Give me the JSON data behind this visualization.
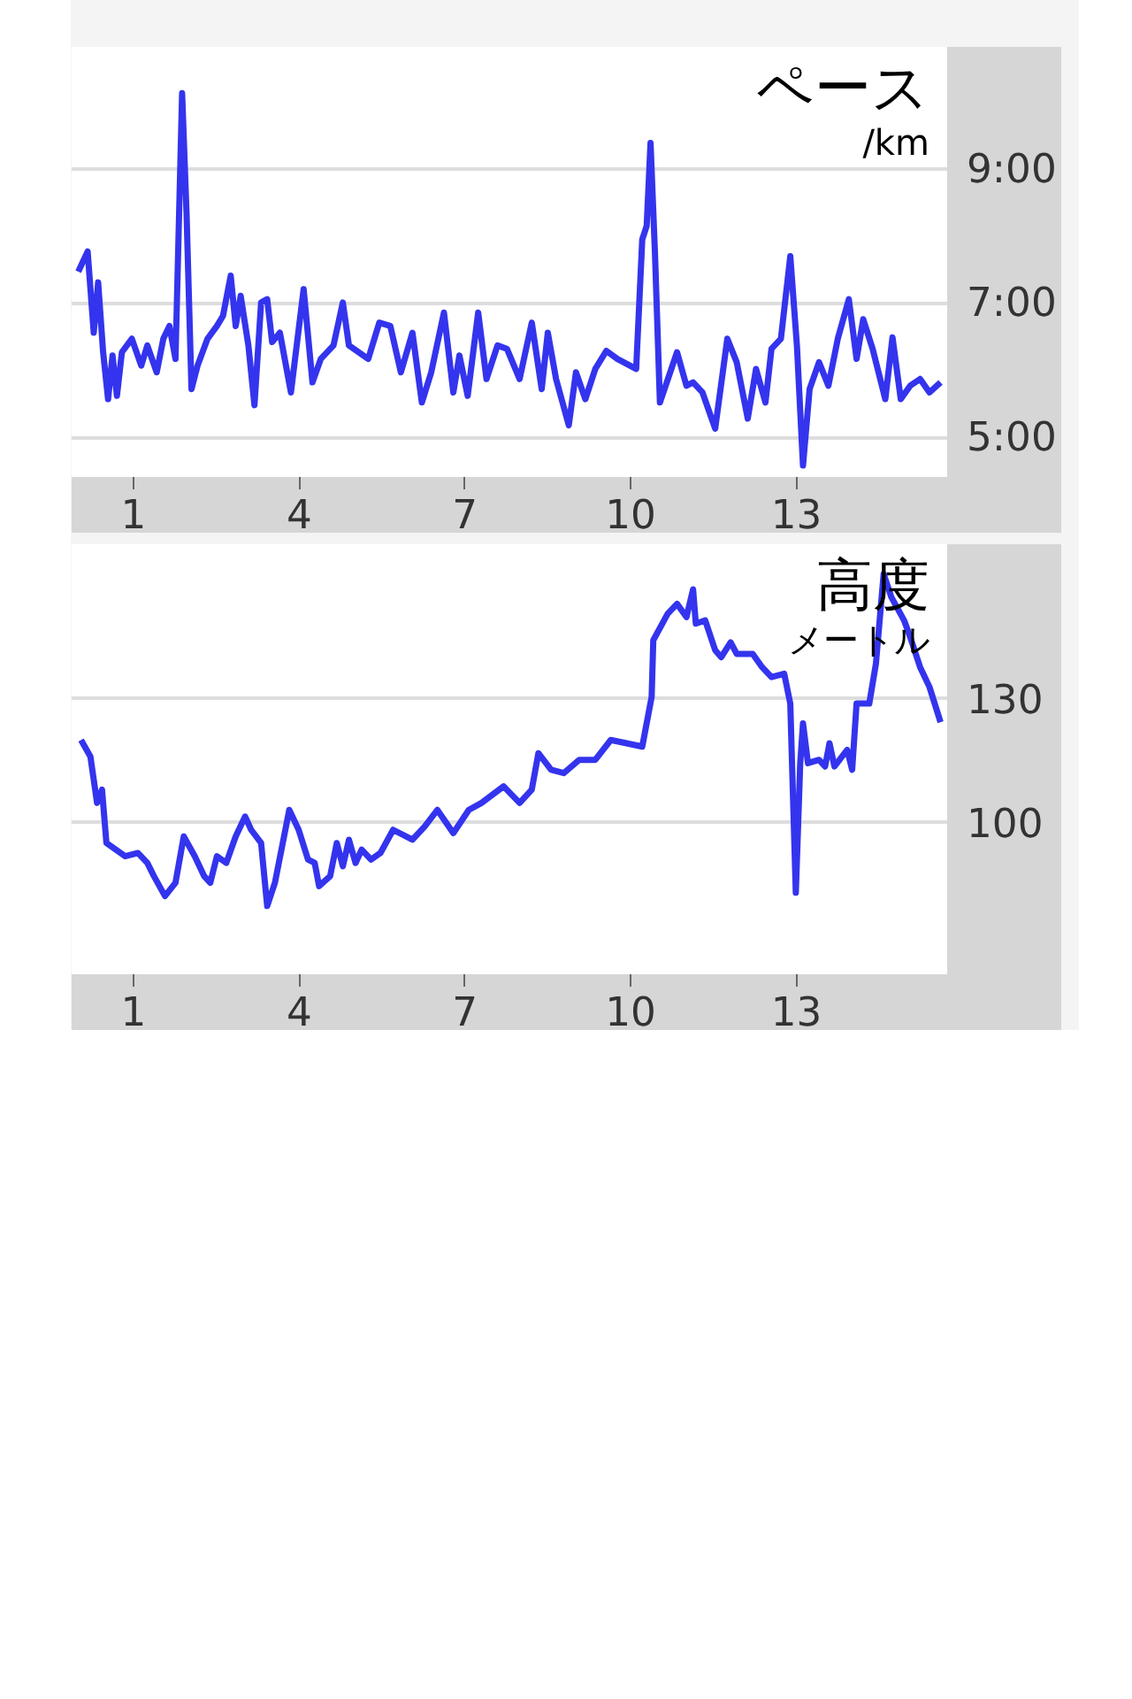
{
  "chart_data": [
    {
      "type": "line",
      "title": "ペース",
      "subtitle": "/km",
      "grid": "y",
      "xlim": [
        -0.12,
        15.73
      ],
      "ylim": [
        4.42,
        10.83
      ],
      "xticks": [
        1,
        4,
        7,
        10,
        13
      ],
      "yticks": [
        {
          "value": 5,
          "label": "5:00"
        },
        {
          "value": 7,
          "label": "7:00"
        },
        {
          "value": 9,
          "label": "9:00"
        }
      ],
      "x": [
        0.0,
        0.17,
        0.28,
        0.36,
        0.45,
        0.54,
        0.62,
        0.7,
        0.79,
        0.97,
        1.14,
        1.25,
        1.42,
        1.54,
        1.65,
        1.76,
        1.88,
        1.96,
        2.05,
        2.16,
        2.34,
        2.51,
        2.62,
        2.76,
        2.85,
        2.94,
        3.08,
        3.19,
        3.31,
        3.42,
        3.51,
        3.65,
        3.85,
        4.08,
        4.24,
        4.39,
        4.62,
        4.79,
        4.9,
        5.25,
        5.45,
        5.65,
        5.84,
        6.05,
        6.22,
        6.39,
        6.62,
        6.79,
        6.9,
        7.05,
        7.24,
        7.39,
        7.59,
        7.76,
        7.99,
        8.21,
        8.39,
        8.5,
        8.65,
        8.88,
        9.01,
        9.18,
        9.36,
        9.56,
        9.76,
        10.1,
        10.21,
        10.29,
        10.36,
        10.44,
        10.53,
        10.84,
        11.01,
        11.13,
        11.3,
        11.53,
        11.75,
        11.92,
        12.12,
        12.27,
        12.44,
        12.55,
        12.72,
        12.89,
        13.01,
        13.12,
        13.24,
        13.41,
        13.58,
        13.75,
        13.95,
        14.09,
        14.21,
        14.38,
        14.61,
        14.74,
        14.89,
        15.06,
        15.24,
        15.41,
        15.61
      ],
      "series": [
        {
          "color": "#3434ee",
          "values": [
            7.48,
            7.78,
            6.57,
            7.32,
            6.28,
            5.58,
            6.23,
            5.63,
            6.28,
            6.48,
            6.08,
            6.38,
            5.98,
            6.48,
            6.67,
            6.18,
            10.14,
            8.36,
            5.73,
            6.08,
            6.48,
            6.67,
            6.82,
            7.42,
            6.67,
            7.12,
            6.38,
            5.49,
            7.02,
            7.07,
            6.43,
            6.57,
            5.68,
            7.22,
            5.83,
            6.18,
            6.38,
            7.02,
            6.38,
            6.18,
            6.72,
            6.67,
            5.98,
            6.57,
            5.53,
            5.98,
            6.87,
            5.68,
            6.23,
            5.63,
            6.87,
            5.88,
            6.38,
            6.33,
            5.88,
            6.72,
            5.73,
            6.57,
            5.88,
            5.19,
            5.98,
            5.58,
            6.03,
            6.3,
            6.18,
            6.03,
            7.96,
            8.16,
            9.4,
            7.76,
            5.53,
            6.28,
            5.78,
            5.83,
            5.68,
            5.14,
            6.48,
            6.13,
            5.29,
            6.03,
            5.53,
            6.33,
            6.48,
            7.71,
            6.38,
            4.59,
            5.73,
            6.13,
            5.78,
            6.48,
            7.07,
            6.18,
            6.77,
            6.33,
            5.58,
            6.5,
            5.58,
            5.78,
            5.88,
            5.68,
            5.83
          ]
        }
      ]
    },
    {
      "type": "line",
      "title": "高度",
      "subtitle": "メートル",
      "grid": "y",
      "xlim": [
        -0.12,
        15.73
      ],
      "ylim": [
        63.3,
        167.2
      ],
      "xticks": [
        1,
        4,
        7,
        10,
        13
      ],
      "yticks": [
        100,
        130
      ],
      "x": [
        0.05,
        0.22,
        0.34,
        0.43,
        0.51,
        0.68,
        0.85,
        1.08,
        1.25,
        1.37,
        1.57,
        1.76,
        1.91,
        2.11,
        2.28,
        2.39,
        2.51,
        2.68,
        2.85,
        3.02,
        3.13,
        3.31,
        3.42,
        3.56,
        3.82,
        3.99,
        4.16,
        4.28,
        4.36,
        4.56,
        4.68,
        4.79,
        4.9,
        5.02,
        5.13,
        5.3,
        5.47,
        5.7,
        6.05,
        6.27,
        6.5,
        6.79,
        7.07,
        7.3,
        7.7,
        7.99,
        8.21,
        8.33,
        8.56,
        8.79,
        9.07,
        9.36,
        9.64,
        9.93,
        10.21,
        10.38,
        10.41,
        10.67,
        10.84,
        11.01,
        11.13,
        11.18,
        11.35,
        11.53,
        11.64,
        11.81,
        11.92,
        12.21,
        12.38,
        12.55,
        12.78,
        12.89,
        12.99,
        13.07,
        13.12,
        13.21,
        13.41,
        13.52,
        13.6,
        13.69,
        13.92,
        14.01,
        14.09,
        14.32,
        14.44,
        14.58,
        14.72,
        14.95,
        15.06,
        15.24,
        15.41,
        15.61
      ],
      "series": [
        {
          "color": "#3434ee",
          "values": [
            119.9,
            115.9,
            104.7,
            107.9,
            95.0,
            93.4,
            91.8,
            92.6,
            90.2,
            87.0,
            82.2,
            85.4,
            96.6,
            91.8,
            87.0,
            85.4,
            91.8,
            90.2,
            96.6,
            101.4,
            98.2,
            95.0,
            79.8,
            85.4,
            103.0,
            98.2,
            91.0,
            90.2,
            84.6,
            87.0,
            95.0,
            89.4,
            95.8,
            90.2,
            93.4,
            91.0,
            92.6,
            98.2,
            95.8,
            99.0,
            103.0,
            97.4,
            103.0,
            104.7,
            108.7,
            104.7,
            107.9,
            116.7,
            112.7,
            111.9,
            115.1,
            115.1,
            119.9,
            119.1,
            118.3,
            130.3,
            144.0,
            150.4,
            152.8,
            149.6,
            156.3,
            148.0,
            148.8,
            141.6,
            139.9,
            143.5,
            140.7,
            140.7,
            137.5,
            135.1,
            135.9,
            128.7,
            83.0,
            114.3,
            123.9,
            114.3,
            115.1,
            113.5,
            119.1,
            113.5,
            117.5,
            112.7,
            128.7,
            128.7,
            138.3,
            160.0,
            154.4,
            148.8,
            144.8,
            137.5,
            132.7,
            124.2
          ]
        }
      ]
    }
  ]
}
